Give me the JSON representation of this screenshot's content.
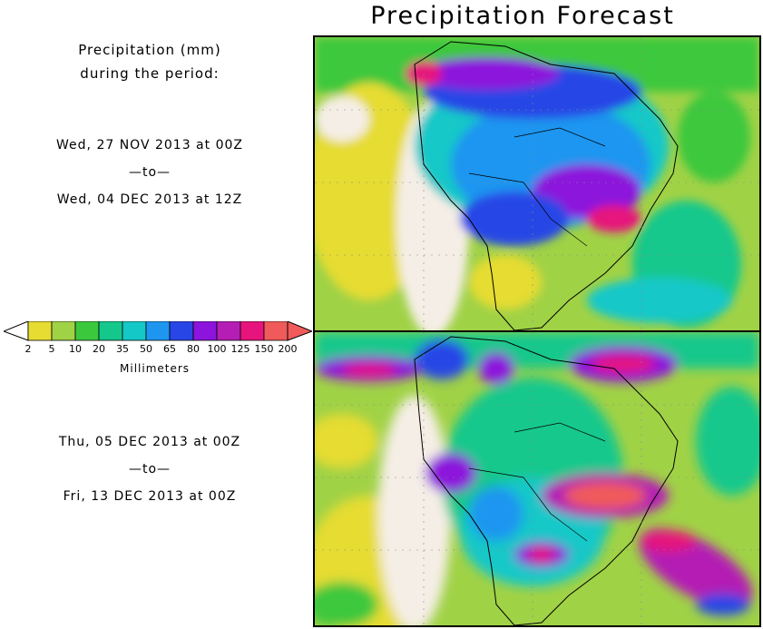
{
  "title": "Precipitation Forecast",
  "units_heading": [
    "Precipitation (mm)",
    "during the period:"
  ],
  "periods": [
    {
      "start": "Wed, 27 NOV 2013 at 00Z",
      "sep": "—to—",
      "end": "Wed, 04 DEC 2013 at 12Z"
    },
    {
      "start": "Thu, 05 DEC 2013 at 00Z",
      "sep": "—to—",
      "end": "Fri, 13 DEC 2013 at 00Z"
    }
  ],
  "legend": {
    "ticks": [
      "2",
      "5",
      "10",
      "20",
      "35",
      "50",
      "65",
      "80",
      "100",
      "125",
      "150",
      "200"
    ],
    "colors": [
      "#e6dc32",
      "#a0d246",
      "#3cc83c",
      "#14c88c",
      "#14c8c8",
      "#1e96f0",
      "#2846e6",
      "#8c14dc",
      "#b41eb4",
      "#e6147c",
      "#f05a5a"
    ],
    "under_color": "#ffffff",
    "over_color": "#f05a5a",
    "units": "Millimeters"
  },
  "palette": {
    "land_dry": "#f5eee6",
    "ocean_light": "#e6dc32",
    "green": "#a0d246",
    "border": "#000000"
  }
}
